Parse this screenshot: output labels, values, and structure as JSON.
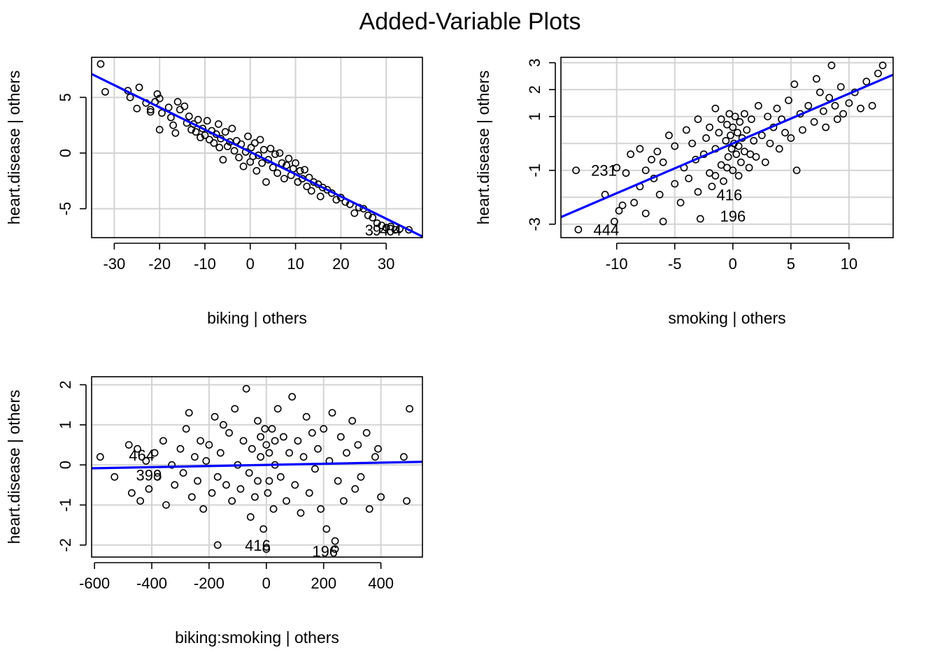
{
  "figure": {
    "title": "Added-Variable Plots"
  },
  "colors": {
    "fit_line": "#0000ff",
    "grid": "#d3d3d3",
    "points": "#000000",
    "frame": "#000000"
  },
  "chart_data": [
    {
      "type": "scatter",
      "xlabel": "biking | others",
      "ylabel": "heart.disease  | others",
      "xlim": [
        -35,
        38
      ],
      "ylim": [
        -7.6,
        8.6
      ],
      "xticks": [
        -30,
        -20,
        -10,
        0,
        10,
        20,
        30
      ],
      "yticks": [
        -5,
        0,
        5
      ],
      "grid": true,
      "trend": {
        "slope": -0.2,
        "intercept": 0.1,
        "color": "#0000ff"
      },
      "points": [
        [
          -33,
          8.0
        ],
        [
          -32,
          5.5
        ],
        [
          -27,
          5.6
        ],
        [
          -26.5,
          5.0
        ],
        [
          -25,
          4.0
        ],
        [
          -24.5,
          5.9
        ],
        [
          -23,
          4.5
        ],
        [
          -22,
          3.9
        ],
        [
          -22,
          3.7
        ],
        [
          -21,
          4.6
        ],
        [
          -20.5,
          5.3
        ],
        [
          -20,
          4.9
        ],
        [
          -20,
          2.1
        ],
        [
          -19.5,
          3.6
        ],
        [
          -18,
          4.1
        ],
        [
          -17.5,
          3.2
        ],
        [
          -17,
          2.5
        ],
        [
          -16.5,
          1.8
        ],
        [
          -16,
          4.6
        ],
        [
          -15.5,
          3.9
        ],
        [
          -14.5,
          4.2
        ],
        [
          -14,
          2.7
        ],
        [
          -13.5,
          3.3
        ],
        [
          -13,
          2.1
        ],
        [
          -12.5,
          2.6
        ],
        [
          -12,
          1.9
        ],
        [
          -11.5,
          3.0
        ],
        [
          -11,
          1.4
        ],
        [
          -10.5,
          2.2
        ],
        [
          -10,
          1.6
        ],
        [
          -9.5,
          2.9
        ],
        [
          -9,
          1.2
        ],
        [
          -8.5,
          2.0
        ],
        [
          -8,
          0.9
        ],
        [
          -7.5,
          1.7
        ],
        [
          -7,
          2.6
        ],
        [
          -6.8,
          0.5
        ],
        [
          -6.5,
          1.3
        ],
        [
          -6,
          -0.6
        ],
        [
          -5.5,
          1.9
        ],
        [
          -5,
          0.6
        ],
        [
          -4.5,
          1.0
        ],
        [
          -4,
          2.2
        ],
        [
          -3.5,
          0.2
        ],
        [
          -3,
          1.1
        ],
        [
          -2.5,
          -0.4
        ],
        [
          -2,
          0.8
        ],
        [
          -1.5,
          -1.2
        ],
        [
          -1,
          0.1
        ],
        [
          -0.5,
          1.5
        ],
        [
          0,
          -0.8
        ],
        [
          0.2,
          0.5
        ],
        [
          0.6,
          -0.3
        ],
        [
          1,
          0.9
        ],
        [
          1.4,
          -1.6
        ],
        [
          1.8,
          -0.2
        ],
        [
          2.2,
          1.2
        ],
        [
          2.6,
          -0.9
        ],
        [
          3,
          0.3
        ],
        [
          3.5,
          -2.6
        ],
        [
          4,
          -0.6
        ],
        [
          4.5,
          0.4
        ],
        [
          5,
          -1.3
        ],
        [
          5.5,
          -0.1
        ],
        [
          6,
          -1.8
        ],
        [
          6.5,
          0.0
        ],
        [
          7,
          -0.9
        ],
        [
          7.5,
          -2.3
        ],
        [
          8,
          -1.1
        ],
        [
          8.5,
          -0.5
        ],
        [
          9,
          -2.0
        ],
        [
          9.5,
          -1.4
        ],
        [
          10,
          -0.9
        ],
        [
          10.5,
          -2.6
        ],
        [
          11,
          -1.6
        ],
        [
          11.5,
          -2.3
        ],
        [
          12,
          -1.5
        ],
        [
          12.5,
          -3.0
        ],
        [
          13,
          -2.2
        ],
        [
          13.5,
          -3.4
        ],
        [
          14,
          -2.6
        ],
        [
          15,
          -2.8
        ],
        [
          15.5,
          -3.9
        ],
        [
          16,
          -3.1
        ],
        [
          17,
          -3.3
        ],
        [
          18,
          -3.6
        ],
        [
          19,
          -4.2
        ],
        [
          20,
          -4.0
        ],
        [
          21,
          -4.4
        ],
        [
          22,
          -4.6
        ],
        [
          23,
          -5.4
        ],
        [
          24,
          -4.9
        ],
        [
          25,
          -5.0
        ],
        [
          26,
          -5.6
        ],
        [
          27,
          -5.8
        ],
        [
          28,
          -6.3
        ],
        [
          29,
          -6.5
        ],
        [
          30,
          -6.7
        ],
        [
          31,
          -6.6
        ],
        [
          32,
          -6.9
        ],
        [
          33,
          -6.8
        ],
        [
          35,
          -6.9
        ]
      ],
      "labels": [
        {
          "text": "3",
          "x": 25.3,
          "y": -6.9
        },
        {
          "text": "9",
          "x": 27.0,
          "y": -6.9
        },
        {
          "text": "4",
          "x": 28.6,
          "y": -6.9
        },
        {
          "text": "0",
          "x": 30.0,
          "y": -6.9
        },
        {
          "text": "4",
          "x": 31.5,
          "y": -6.9
        }
      ]
    },
    {
      "type": "scatter",
      "xlabel": "smoking | others",
      "ylabel": "heart.disease  | others",
      "xlim": [
        -14.8,
        13.8
      ],
      "ylim": [
        -3.5,
        3.2
      ],
      "xticks": [
        -10,
        -5,
        0,
        5,
        10
      ],
      "yticks": [
        -3,
        -1,
        1,
        2,
        3
      ],
      "ygrid": [
        -3,
        -2,
        -1,
        0,
        1,
        2,
        3
      ],
      "grid": true,
      "trend": {
        "slope": 0.185,
        "intercept": 0.0,
        "color": "#0000ff"
      },
      "points": [
        [
          -13.5,
          -1.0
        ],
        [
          -13.3,
          -3.2
        ],
        [
          -11,
          -1.9
        ],
        [
          -10.2,
          -2.9
        ],
        [
          -10,
          -0.9
        ],
        [
          -9.8,
          -2.5
        ],
        [
          -9.5,
          -2.3
        ],
        [
          -9.2,
          -1.1
        ],
        [
          -8.8,
          -0.4
        ],
        [
          -8.5,
          -2.2
        ],
        [
          -8.0,
          -1.6
        ],
        [
          -8.0,
          -0.2
        ],
        [
          -7.5,
          -1.0
        ],
        [
          -7.5,
          -2.6
        ],
        [
          -7.0,
          -0.6
        ],
        [
          -6.8,
          -1.3
        ],
        [
          -6.5,
          -0.3
        ],
        [
          -6.3,
          -1.9
        ],
        [
          -6.0,
          -2.9
        ],
        [
          -6.0,
          -0.7
        ],
        [
          -5.5,
          0.3
        ],
        [
          -5.0,
          -1.5
        ],
        [
          -5.0,
          -0.1
        ],
        [
          -4.5,
          -2.2
        ],
        [
          -4.2,
          -0.9
        ],
        [
          -4.0,
          0.5
        ],
        [
          -3.8,
          -1.3
        ],
        [
          -3.5,
          0.0
        ],
        [
          -3.2,
          -0.6
        ],
        [
          -3.0,
          -1.8
        ],
        [
          -3.0,
          0.9
        ],
        [
          -2.8,
          -2.8
        ],
        [
          -2.5,
          -0.4
        ],
        [
          -2.3,
          0.2
        ],
        [
          -2.0,
          -1.1
        ],
        [
          -2.0,
          0.6
        ],
        [
          -1.8,
          -1.6
        ],
        [
          -1.5,
          -0.2
        ],
        [
          -1.5,
          1.3
        ],
        [
          -1.2,
          0.4
        ],
        [
          -1.0,
          -0.8
        ],
        [
          -1.0,
          0.9
        ],
        [
          -0.8,
          -1.4
        ],
        [
          -0.6,
          0.1
        ],
        [
          -0.5,
          0.7
        ],
        [
          -0.4,
          -0.5
        ],
        [
          -0.3,
          1.1
        ],
        [
          -0.2,
          0.3
        ],
        [
          -0.1,
          -0.2
        ],
        [
          0.0,
          0.6
        ],
        [
          0.0,
          -1.0
        ],
        [
          0.1,
          0.0
        ],
        [
          0.2,
          1.0
        ],
        [
          0.3,
          -0.4
        ],
        [
          0.4,
          0.4
        ],
        [
          0.5,
          -0.1
        ],
        [
          0.6,
          0.8
        ],
        [
          0.7,
          -0.7
        ],
        [
          0.8,
          0.2
        ],
        [
          1.0,
          1.1
        ],
        [
          1.0,
          -0.3
        ],
        [
          1.2,
          0.5
        ],
        [
          1.4,
          -0.9
        ],
        [
          1.6,
          0.9
        ],
        [
          1.8,
          0.1
        ],
        [
          2.0,
          -0.5
        ],
        [
          2.2,
          1.4
        ],
        [
          2.5,
          0.3
        ],
        [
          2.8,
          -0.7
        ],
        [
          3.0,
          1.0
        ],
        [
          3.2,
          0.0
        ],
        [
          3.5,
          0.6
        ],
        [
          3.8,
          1.3
        ],
        [
          4.0,
          -0.2
        ],
        [
          4.2,
          0.9
        ],
        [
          4.5,
          0.4
        ],
        [
          4.8,
          1.6
        ],
        [
          5.0,
          0.2
        ],
        [
          5.3,
          2.2
        ],
        [
          5.5,
          -1.0
        ],
        [
          5.8,
          1.1
        ],
        [
          6.0,
          0.5
        ],
        [
          6.5,
          1.4
        ],
        [
          7.0,
          0.8
        ],
        [
          7.2,
          2.4
        ],
        [
          7.5,
          1.9
        ],
        [
          7.8,
          1.2
        ],
        [
          8.0,
          0.6
        ],
        [
          8.3,
          1.7
        ],
        [
          8.5,
          2.9
        ],
        [
          8.8,
          1.4
        ],
        [
          9.0,
          0.9
        ],
        [
          9.3,
          2.1
        ],
        [
          9.5,
          1.1
        ],
        [
          10.0,
          1.5
        ],
        [
          10.5,
          1.9
        ],
        [
          11.0,
          1.3
        ],
        [
          11.5,
          2.3
        ],
        [
          12.0,
          1.4
        ],
        [
          12.5,
          2.6
        ],
        [
          12.9,
          2.9
        ],
        [
          -0.5,
          -0.9
        ],
        [
          0.5,
          -1.2
        ],
        [
          1.5,
          -0.4
        ],
        [
          -1.5,
          -1.2
        ]
      ],
      "labels": [
        {
          "text": "231",
          "x": -12.2,
          "y": -1.0
        },
        {
          "text": "416",
          "x": -1.4,
          "y": -1.9
        },
        {
          "text": "196",
          "x": -1.1,
          "y": -2.7
        },
        {
          "text": "444",
          "x": -12.0,
          "y": -3.2
        }
      ]
    },
    {
      "type": "scatter",
      "xlabel": "biking:smoking | others",
      "ylabel": "heart.disease  | others",
      "xlim": [
        -610,
        545
      ],
      "ylim": [
        -2.3,
        2.2
      ],
      "xticks": [
        -600,
        -400,
        -200,
        0,
        200,
        400
      ],
      "yticks": [
        -2,
        -1,
        0,
        1,
        2
      ],
      "xgrid": [
        -400,
        -200,
        0,
        200,
        400
      ],
      "grid": true,
      "trend": {
        "slope": 0.00014,
        "intercept": 0.0,
        "color": "#0000ff"
      },
      "points": [
        [
          -580,
          0.2
        ],
        [
          -530,
          -0.3
        ],
        [
          -480,
          0.5
        ],
        [
          -470,
          -0.7
        ],
        [
          -450,
          0.4
        ],
        [
          -440,
          -0.9
        ],
        [
          -420,
          0.1
        ],
        [
          -410,
          -0.6
        ],
        [
          -390,
          0.3
        ],
        [
          -380,
          -0.3
        ],
        [
          -360,
          0.6
        ],
        [
          -350,
          -1.0
        ],
        [
          -330,
          0.0
        ],
        [
          -320,
          -0.5
        ],
        [
          -300,
          0.4
        ],
        [
          -290,
          -0.2
        ],
        [
          -280,
          0.9
        ],
        [
          -270,
          1.3
        ],
        [
          -260,
          -0.8
        ],
        [
          -250,
          0.2
        ],
        [
          -240,
          -0.4
        ],
        [
          -230,
          0.6
        ],
        [
          -220,
          -1.1
        ],
        [
          -210,
          0.1
        ],
        [
          -200,
          0.5
        ],
        [
          -190,
          -0.7
        ],
        [
          -180,
          1.2
        ],
        [
          -170,
          -0.3
        ],
        [
          -170,
          -2.0
        ],
        [
          -160,
          0.3
        ],
        [
          -150,
          1.0
        ],
        [
          -140,
          -0.5
        ],
        [
          -130,
          0.8
        ],
        [
          -120,
          -0.9
        ],
        [
          -110,
          1.4
        ],
        [
          -100,
          0.0
        ],
        [
          -90,
          -0.6
        ],
        [
          -80,
          0.6
        ],
        [
          -70,
          1.9
        ],
        [
          -60,
          -0.2
        ],
        [
          -55,
          -1.3
        ],
        [
          -50,
          0.4
        ],
        [
          -40,
          -0.8
        ],
        [
          -30,
          1.1
        ],
        [
          -20,
          0.2
        ],
        [
          -10,
          -1.6
        ],
        [
          0,
          0.5
        ],
        [
          0,
          -2.1
        ],
        [
          10,
          -0.4
        ],
        [
          20,
          0.9
        ],
        [
          25,
          -1.1
        ],
        [
          30,
          0.0
        ],
        [
          40,
          1.4
        ],
        [
          50,
          -0.3
        ],
        [
          60,
          0.7
        ],
        [
          70,
          -0.9
        ],
        [
          80,
          0.3
        ],
        [
          90,
          1.7
        ],
        [
          100,
          -0.5
        ],
        [
          110,
          0.6
        ],
        [
          120,
          -1.2
        ],
        [
          130,
          0.2
        ],
        [
          140,
          1.2
        ],
        [
          150,
          -0.7
        ],
        [
          160,
          0.8
        ],
        [
          170,
          -0.1
        ],
        [
          180,
          0.4
        ],
        [
          190,
          -1.1
        ],
        [
          200,
          0.9
        ],
        [
          210,
          -1.6
        ],
        [
          220,
          0.1
        ],
        [
          230,
          1.3
        ],
        [
          240,
          -2.1
        ],
        [
          240,
          -1.9
        ],
        [
          250,
          -0.4
        ],
        [
          260,
          0.7
        ],
        [
          270,
          -0.9
        ],
        [
          280,
          0.3
        ],
        [
          300,
          1.1
        ],
        [
          310,
          -0.6
        ],
        [
          320,
          0.5
        ],
        [
          330,
          -0.3
        ],
        [
          350,
          0.8
        ],
        [
          360,
          -1.1
        ],
        [
          380,
          0.2
        ],
        [
          390,
          0.4
        ],
        [
          400,
          -0.8
        ],
        [
          480,
          0.2
        ],
        [
          490,
          -0.9
        ],
        [
          500,
          1.4
        ],
        [
          -20,
          0.7
        ],
        [
          10,
          0.3
        ],
        [
          -30,
          -0.4
        ],
        [
          30,
          0.6
        ],
        [
          -5,
          0.9
        ],
        [
          5,
          -0.7
        ]
      ],
      "labels": [
        {
          "text": "464",
          "x": -480,
          "y": 0.25
        },
        {
          "text": "399",
          "x": -455,
          "y": -0.25
        },
        {
          "text": "416",
          "x": -75,
          "y": -2.0
        },
        {
          "text": "196",
          "x": 160,
          "y": -2.15
        }
      ]
    }
  ]
}
